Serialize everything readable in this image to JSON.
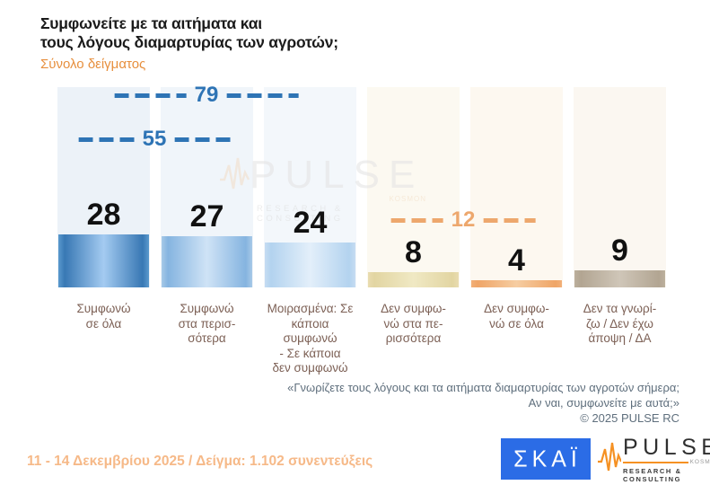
{
  "title": "Συμφωνείτε με τα αιτήματα και\nτους λόγους διαμαρτυρίας των αγροτών;",
  "subtitle": "Σύνολο δείγματος",
  "chart_data": {
    "type": "bar",
    "categories": [
      "Συμφωνώ σε όλα",
      "Συμφωνώ στα περισσότερα",
      "Μοιρασμένα: Σε κάποια συμφωνώ - Σε κάποια δεν συμφωνώ",
      "Δεν συμφωνώ στα περισσότερα",
      "Δεν συμφωνώ σε όλα",
      "Δεν τα γνωρίζω / Δεν έχω άποψη / ΔΑ"
    ],
    "categories_display": [
      "Συμφωνώ\nσε όλα",
      "Συμφωνώ\nστα περισ-\nσότερα",
      "Μοιρασμένα: Σε\nκάποια συμφωνώ\n- Σε κάποια\nδεν συμφωνώ",
      "Δεν συμφω-\nνώ στα πε-\nρισσότερα",
      "Δεν συμφω-\nνώ σε όλα",
      "Δεν τα γνωρί-\nζω / Δεν έχω\nάποψη / ΔΑ"
    ],
    "values": [
      28,
      27,
      24,
      8,
      4,
      9
    ],
    "group_sums": [
      {
        "label": "55",
        "value": 55,
        "spans_columns": "1-2",
        "color": "#2e74b5"
      },
      {
        "label": "79",
        "value": 79,
        "spans_columns": "1-3",
        "color": "#2e74b5"
      },
      {
        "label": "12",
        "value": 12,
        "spans_columns": "4-5",
        "color": "#eda76d"
      }
    ],
    "title": "Συμφωνείτε με τα αιτήματα και τους λόγους διαμαρτυρίας των αγροτών;",
    "subtitle": "Σύνολο δείγματος",
    "xlabel": "",
    "ylabel": "",
    "ylim": [
      0,
      100
    ],
    "grid": false,
    "legend": false,
    "unit": "percent",
    "bar_colors": [
      "#3878b4",
      "#85b4e0",
      "#b3d3ef",
      "#e2d5a2",
      "#efa567",
      "#b2a592"
    ]
  },
  "footnote": {
    "question": "«Γνωρίζετε τους λόγους και τα αιτήματα διαμαρτυρίας των αγροτών σήμερα;\nΑν ναι, συμφωνείτε με αυτά;»",
    "copyright": "©  2025  PULSE RC"
  },
  "bottom": {
    "fieldwork": "11 - 14 Δεκεμβρίου 2025  /  Δείγμα:  1.102 συνεντεύξεις"
  },
  "logos": {
    "skai": {
      "text": "ΣΚΑΪ",
      "bg_color": "#2b6ce6"
    },
    "pulse": {
      "name": "PULSE",
      "tag": "KOSMON",
      "sub": "RESEARCH & CONSULTING",
      "accent_color": "#f59123"
    }
  },
  "watermark": {
    "name": "PULSE",
    "sub": "RESEARCH & CONSULTING"
  },
  "colors": {
    "title_text": "#1b1b1b",
    "subtitle_text": "#e78f3d",
    "category_text": "#7d6156",
    "footnote_text": "#5f6f7d",
    "fieldwork_text": "#f6b988",
    "sum_blue": "#2e74b5",
    "sum_orange": "#eda76d"
  }
}
